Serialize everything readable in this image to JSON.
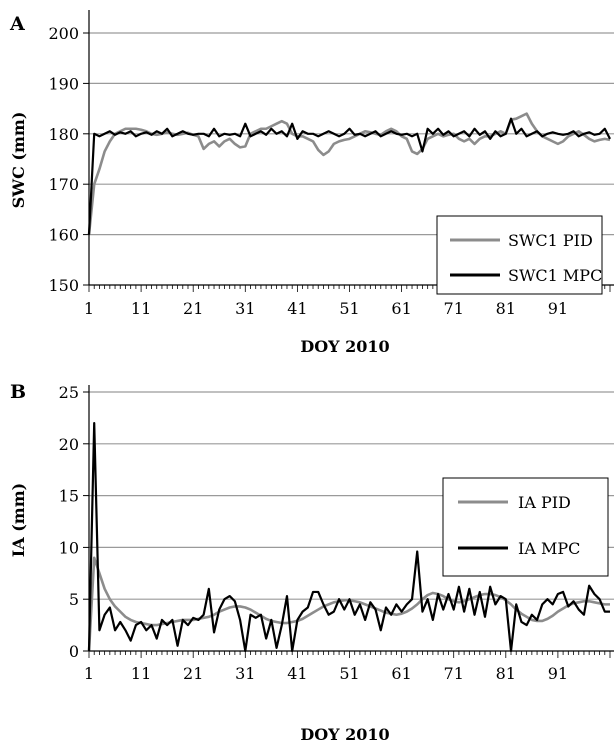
{
  "chart_data": [
    {
      "panel_label": "A",
      "type": "line",
      "title": "",
      "xlabel": "DOY 2010",
      "ylabel": "SWC (mm)",
      "xlim": [
        1,
        101
      ],
      "ylim": [
        150,
        200
      ],
      "yticks": [
        150,
        160,
        170,
        180,
        190,
        200
      ],
      "xtick_labels": [
        "1",
        "11",
        "21",
        "31",
        "41",
        "51",
        "61",
        "71",
        "81",
        "91"
      ],
      "grid": "horizontal",
      "legend_position": "lower-right",
      "series": [
        {
          "name": "SWC1 PID",
          "color": "#8c8c8c",
          "values": [
            160.0,
            170.0,
            173.0,
            176.5,
            178.5,
            180.0,
            180.5,
            181.0,
            181.0,
            181.0,
            180.8,
            180.5,
            180.0,
            179.8,
            180.0,
            180.3,
            180.0,
            179.8,
            180.0,
            180.2,
            179.8,
            179.5,
            177.0,
            178.0,
            178.5,
            177.5,
            178.5,
            179.0,
            178.0,
            177.3,
            177.5,
            180.0,
            180.5,
            181.0,
            181.0,
            181.5,
            182.0,
            182.5,
            182.0,
            180.0,
            179.5,
            179.5,
            179.0,
            178.5,
            176.8,
            175.8,
            176.5,
            178.0,
            178.5,
            178.8,
            179.0,
            179.5,
            180.0,
            180.5,
            180.3,
            180.0,
            179.8,
            180.5,
            181.0,
            180.5,
            179.5,
            179.0,
            176.5,
            176.0,
            177.0,
            179.0,
            179.5,
            180.0,
            179.5,
            179.8,
            180.0,
            179.0,
            178.5,
            179.0,
            178.0,
            179.0,
            179.5,
            179.5,
            180.0,
            180.5,
            180.0,
            182.8,
            183.0,
            183.5,
            184.0,
            182.0,
            180.5,
            179.5,
            179.0,
            178.5,
            178.0,
            178.5,
            179.5,
            180.0,
            180.5,
            179.8,
            179.0,
            178.5,
            178.8,
            179.0,
            178.8
          ]
        },
        {
          "name": "SWC1 MPC",
          "color": "#000000",
          "values": [
            160.0,
            180.0,
            179.5,
            180.0,
            180.5,
            179.8,
            180.3,
            180.0,
            180.5,
            179.5,
            180.0,
            180.3,
            179.8,
            180.5,
            180.0,
            181.0,
            179.5,
            180.0,
            180.5,
            180.0,
            179.8,
            180.0,
            180.0,
            179.5,
            181.0,
            179.5,
            180.0,
            179.8,
            180.0,
            179.5,
            182.0,
            179.5,
            180.0,
            180.5,
            179.8,
            181.0,
            180.0,
            180.5,
            179.5,
            182.0,
            179.0,
            180.5,
            180.0,
            180.0,
            179.5,
            180.0,
            180.5,
            180.0,
            179.5,
            180.0,
            181.0,
            179.8,
            180.0,
            179.5,
            180.0,
            180.5,
            179.5,
            180.0,
            180.5,
            180.0,
            179.8,
            180.0,
            179.5,
            180.0,
            176.5,
            181.0,
            180.0,
            181.0,
            179.8,
            180.5,
            179.5,
            180.0,
            180.5,
            179.5,
            181.0,
            179.8,
            180.5,
            179.0,
            180.5,
            179.5,
            180.0,
            183.0,
            180.0,
            181.0,
            179.5,
            180.0,
            180.5,
            179.5,
            180.0,
            180.3,
            180.0,
            179.8,
            180.0,
            180.5,
            179.5,
            180.0,
            180.3,
            179.8,
            180.0,
            181.0,
            179.0
          ]
        }
      ]
    },
    {
      "panel_label": "B",
      "type": "line",
      "title": "",
      "xlabel": "DOY 2010",
      "ylabel": "IA (mm)",
      "xlim": [
        1,
        101
      ],
      "ylim": [
        0,
        25
      ],
      "yticks": [
        0,
        5,
        10,
        15,
        20,
        25
      ],
      "xtick_labels": [
        "1",
        "11",
        "21",
        "31",
        "41",
        "51",
        "61",
        "71",
        "81",
        "91"
      ],
      "grid": "horizontal",
      "legend_position": "right",
      "series": [
        {
          "name": "IA PID",
          "color": "#8c8c8c",
          "values": [
            0.0,
            9.0,
            7.5,
            6.0,
            5.0,
            4.3,
            3.8,
            3.3,
            3.0,
            2.8,
            2.7,
            2.6,
            2.5,
            2.5,
            2.6,
            2.7,
            2.8,
            2.9,
            3.0,
            3.0,
            3.0,
            3.1,
            3.2,
            3.3,
            3.5,
            3.8,
            4.0,
            4.2,
            4.3,
            4.3,
            4.2,
            4.0,
            3.7,
            3.4,
            3.1,
            2.9,
            2.8,
            2.7,
            2.7,
            2.8,
            2.9,
            3.1,
            3.4,
            3.7,
            4.0,
            4.3,
            4.5,
            4.7,
            4.8,
            4.9,
            4.9,
            4.8,
            4.7,
            4.5,
            4.3,
            4.1,
            3.9,
            3.7,
            3.6,
            3.5,
            3.6,
            3.8,
            4.1,
            4.5,
            5.0,
            5.4,
            5.6,
            5.5,
            5.3,
            5.0,
            4.8,
            4.7,
            4.8,
            5.0,
            5.2,
            5.4,
            5.5,
            5.5,
            5.4,
            5.2,
            4.9,
            4.5,
            4.0,
            3.6,
            3.3,
            3.0,
            2.9,
            2.9,
            3.1,
            3.4,
            3.8,
            4.1,
            4.4,
            4.6,
            4.7,
            4.8,
            4.8,
            4.7,
            4.6,
            4.5,
            4.5
          ]
        },
        {
          "name": "IA MPC",
          "color": "#000000",
          "values": [
            0.0,
            22.0,
            2.0,
            3.5,
            4.2,
            2.0,
            2.8,
            2.0,
            1.0,
            2.5,
            2.8,
            2.0,
            2.5,
            1.2,
            3.0,
            2.5,
            3.0,
            0.5,
            3.0,
            2.5,
            3.2,
            3.0,
            3.5,
            6.0,
            1.8,
            4.0,
            5.0,
            5.3,
            4.8,
            3.0,
            0.0,
            3.5,
            3.2,
            3.5,
            1.2,
            3.0,
            0.3,
            2.5,
            5.3,
            0.0,
            3.0,
            3.8,
            4.2,
            5.7,
            5.7,
            4.5,
            3.5,
            3.8,
            5.0,
            4.0,
            5.0,
            3.5,
            4.5,
            3.0,
            4.7,
            4.0,
            2.0,
            4.2,
            3.5,
            4.5,
            3.8,
            4.5,
            5.0,
            9.6,
            3.8,
            5.0,
            3.0,
            5.5,
            4.0,
            5.5,
            4.0,
            6.2,
            3.8,
            6.0,
            3.5,
            5.7,
            3.3,
            6.2,
            4.5,
            5.3,
            5.0,
            0.0,
            4.5,
            2.8,
            2.5,
            3.5,
            3.0,
            4.5,
            5.0,
            4.5,
            5.5,
            5.7,
            4.3,
            4.8,
            4.0,
            3.5,
            6.3,
            5.5,
            5.0,
            3.8,
            3.8
          ]
        }
      ]
    }
  ]
}
